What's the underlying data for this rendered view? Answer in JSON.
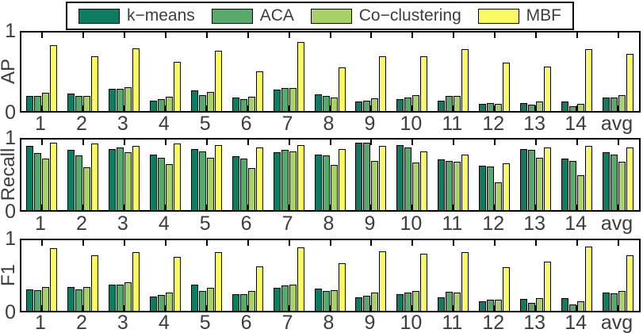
{
  "legend": {
    "position": "top",
    "items": [
      {
        "label": "k−means",
        "color": "#0E7C60"
      },
      {
        "label": "ACA",
        "color": "#57A96C"
      },
      {
        "label": "Co−clustering",
        "color": "#A9D16A"
      },
      {
        "label": "MBF",
        "color": "#FAFA64"
      }
    ]
  },
  "chart_data": [
    {
      "type": "bar",
      "title": "",
      "ylabel": "AP",
      "xlabel": "",
      "ylim": [
        0,
        1
      ],
      "yticks": [
        0,
        1
      ],
      "grid": false,
      "categories": [
        "1",
        "2",
        "3",
        "4",
        "5",
        "6",
        "7",
        "8",
        "9",
        "10",
        "11",
        "12",
        "13",
        "14",
        "avg"
      ],
      "series": [
        {
          "name": "k-means",
          "color": "#0E7C60",
          "values": [
            0.19,
            0.22,
            0.28,
            0.13,
            0.26,
            0.17,
            0.27,
            0.21,
            0.12,
            0.15,
            0.13,
            0.09,
            0.1,
            0.12,
            0.17
          ]
        },
        {
          "name": "ACA",
          "color": "#57A96C",
          "values": [
            0.19,
            0.19,
            0.28,
            0.15,
            0.2,
            0.15,
            0.29,
            0.19,
            0.13,
            0.17,
            0.19,
            0.1,
            0.08,
            0.06,
            0.17
          ]
        },
        {
          "name": "Co-clustering",
          "color": "#A9D16A",
          "values": [
            0.23,
            0.19,
            0.3,
            0.18,
            0.24,
            0.18,
            0.29,
            0.17,
            0.16,
            0.2,
            0.19,
            0.09,
            0.12,
            0.09,
            0.2
          ]
        },
        {
          "name": "MBF",
          "color": "#FAFA64",
          "values": [
            0.84,
            0.7,
            0.8,
            0.63,
            0.77,
            0.51,
            0.88,
            0.56,
            0.7,
            0.7,
            0.79,
            0.62,
            0.57,
            0.79,
            0.73
          ]
        }
      ]
    },
    {
      "type": "bar",
      "title": "",
      "ylabel": "Recall",
      "xlabel": "",
      "ylim": [
        0,
        1
      ],
      "yticks": [
        0,
        1
      ],
      "grid": false,
      "categories": [
        "1",
        "2",
        "3",
        "4",
        "5",
        "6",
        "7",
        "8",
        "9",
        "10",
        "11",
        "12",
        "13",
        "14",
        "avg"
      ],
      "series": [
        {
          "name": "k-means",
          "color": "#0E7C60",
          "values": [
            0.91,
            0.85,
            0.87,
            0.79,
            0.86,
            0.76,
            0.82,
            0.79,
            0.96,
            0.92,
            0.72,
            0.63,
            0.87,
            0.73,
            0.82
          ]
        },
        {
          "name": "ACA",
          "color": "#57A96C",
          "values": [
            0.81,
            0.78,
            0.89,
            0.74,
            0.83,
            0.73,
            0.85,
            0.78,
            0.96,
            0.89,
            0.7,
            0.62,
            0.85,
            0.7,
            0.79
          ]
        },
        {
          "name": "Co-clustering",
          "color": "#A9D16A",
          "values": [
            0.73,
            0.61,
            0.82,
            0.65,
            0.74,
            0.6,
            0.83,
            0.64,
            0.7,
            0.67,
            0.68,
            0.39,
            0.74,
            0.49,
            0.69
          ]
        },
        {
          "name": "MBF",
          "color": "#FAFA64",
          "values": [
            0.95,
            0.94,
            0.91,
            0.94,
            0.92,
            0.89,
            0.92,
            0.86,
            0.91,
            0.83,
            0.79,
            0.66,
            0.89,
            0.91,
            0.89
          ]
        }
      ]
    },
    {
      "type": "bar",
      "title": "",
      "ylabel": "F1",
      "xlabel": "",
      "ylim": [
        0,
        1
      ],
      "yticks": [
        0,
        1
      ],
      "grid": false,
      "categories": [
        "1",
        "2",
        "3",
        "4",
        "5",
        "6",
        "7",
        "8",
        "9",
        "10",
        "11",
        "12",
        "13",
        "14",
        "avg"
      ],
      "series": [
        {
          "name": "k-means",
          "color": "#0E7C60",
          "values": [
            0.3,
            0.34,
            0.37,
            0.2,
            0.37,
            0.24,
            0.33,
            0.32,
            0.19,
            0.24,
            0.19,
            0.14,
            0.17,
            0.18,
            0.26
          ]
        },
        {
          "name": "ACA",
          "color": "#57A96C",
          "values": [
            0.29,
            0.3,
            0.37,
            0.23,
            0.28,
            0.24,
            0.36,
            0.28,
            0.21,
            0.26,
            0.27,
            0.16,
            0.11,
            0.09,
            0.25
          ]
        },
        {
          "name": "Co-clustering",
          "color": "#A9D16A",
          "values": [
            0.34,
            0.34,
            0.4,
            0.26,
            0.33,
            0.28,
            0.37,
            0.29,
            0.26,
            0.28,
            0.26,
            0.16,
            0.18,
            0.14,
            0.28
          ]
        },
        {
          "name": "MBF",
          "color": "#FAFA64",
          "values": [
            0.89,
            0.79,
            0.83,
            0.76,
            0.83,
            0.63,
            0.9,
            0.67,
            0.84,
            0.81,
            0.83,
            0.62,
            0.7,
            0.91,
            0.79
          ]
        }
      ]
    }
  ]
}
